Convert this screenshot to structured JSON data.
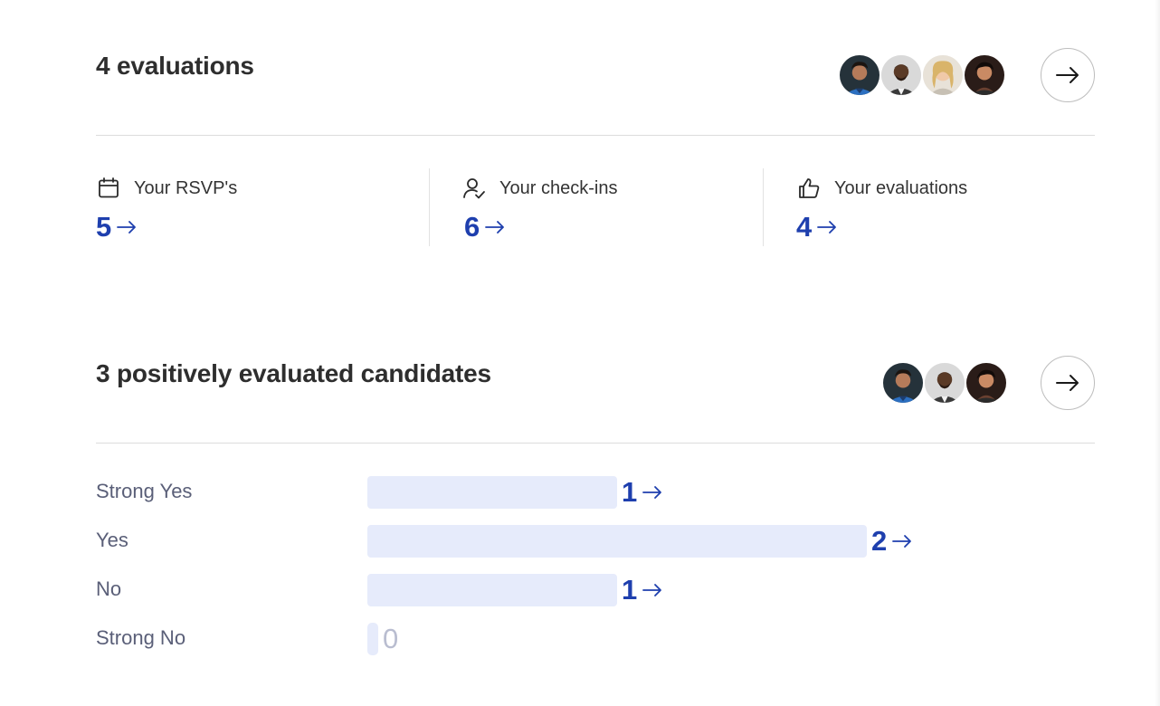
{
  "evaluations_section": {
    "title": "4 evaluations",
    "avatars": [
      "avatar-1",
      "avatar-2",
      "avatar-3",
      "avatar-4"
    ],
    "open_icon": "arrow-right-icon"
  },
  "stats": [
    {
      "icon": "calendar-icon",
      "label": "Your RSVP's",
      "value": "5"
    },
    {
      "icon": "user-check-icon",
      "label": "Your check-ins",
      "value": "6"
    },
    {
      "icon": "thumbs-up-icon",
      "label": "Your evaluations",
      "value": "4"
    }
  ],
  "candidates_section": {
    "title": "3 positively evaluated candidates",
    "avatars": [
      "avatar-1",
      "avatar-2",
      "avatar-4"
    ],
    "open_icon": "arrow-right-icon"
  },
  "distribution": {
    "max": 2,
    "rows": [
      {
        "label": "Strong Yes",
        "count": 1
      },
      {
        "label": "Yes",
        "count": 2
      },
      {
        "label": "No",
        "count": 1
      },
      {
        "label": "Strong No",
        "count": 0
      }
    ],
    "counts_text": [
      "1",
      "2",
      "1",
      "0"
    ]
  },
  "colors": {
    "accent": "#1e3fae",
    "bar": "#e6ebfb",
    "label": "#5a5f78"
  }
}
